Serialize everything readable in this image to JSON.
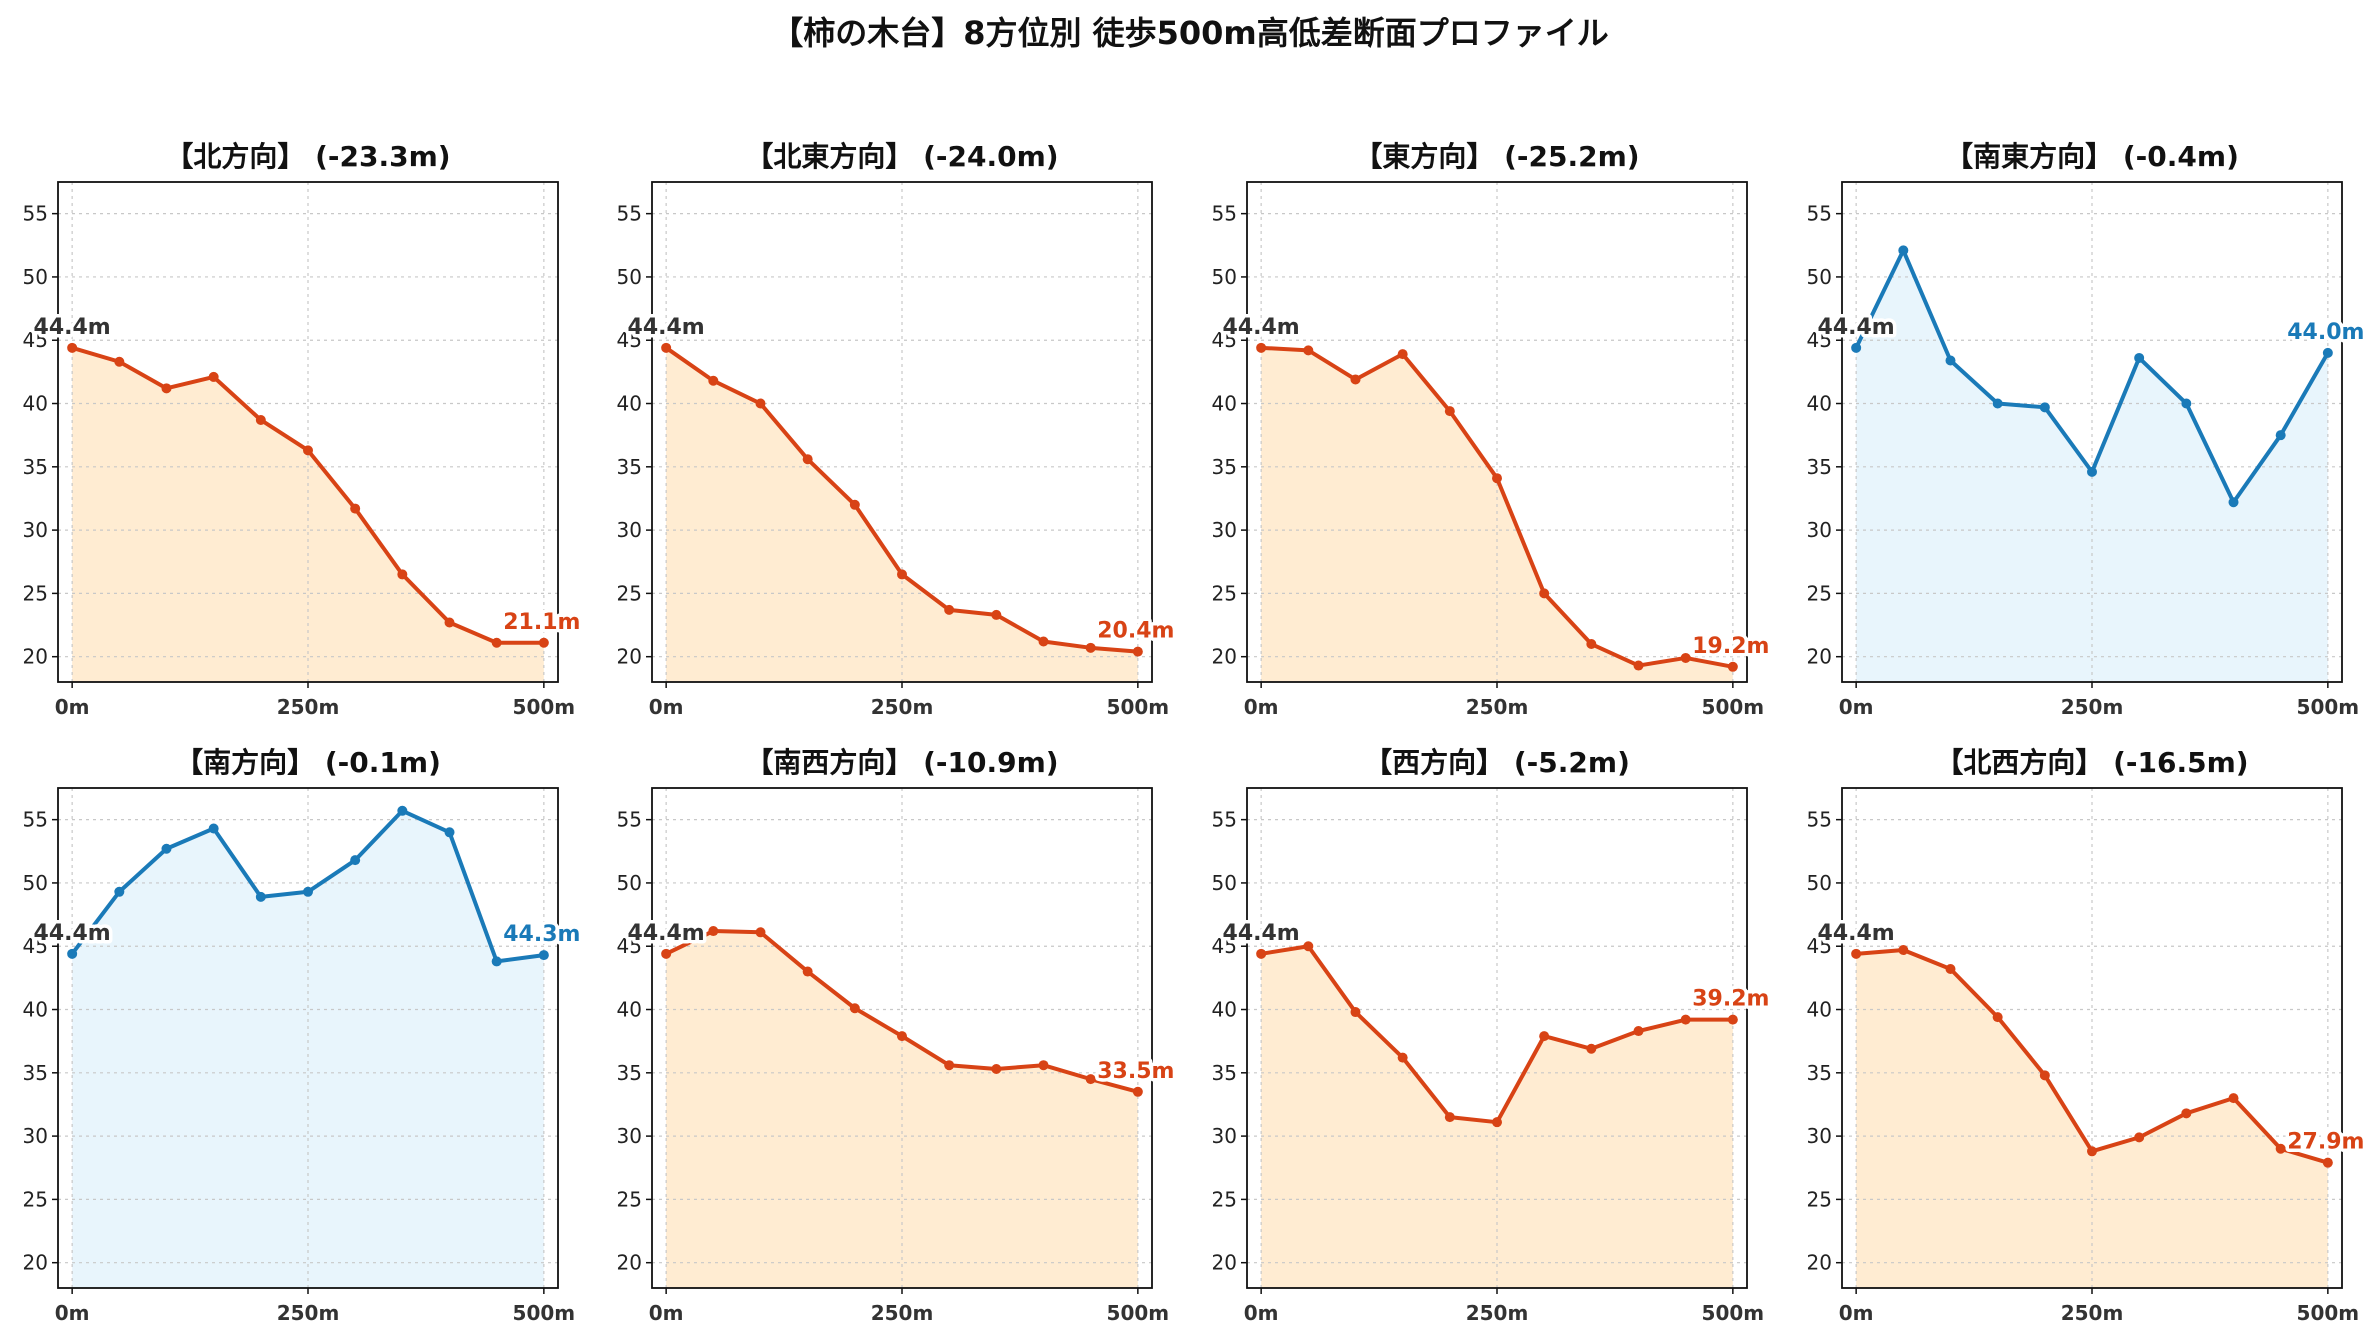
{
  "title": "【柿の木台】8方位別 徒歩500m高低差断面プロファイル",
  "colors": {
    "down_line": "#d84315",
    "down_fill": "#ffecd2",
    "up_line": "#1a7ab8",
    "up_fill": "#e8f5fc",
    "start_label": "#333333"
  },
  "chart_data": [
    {
      "type": "area",
      "title": "【北方向】 (-23.3m)",
      "trend": "down",
      "x": [
        0,
        50,
        100,
        150,
        200,
        250,
        300,
        350,
        400,
        450,
        500
      ],
      "y": [
        44.4,
        43.3,
        41.2,
        42.1,
        38.7,
        36.3,
        31.7,
        26.5,
        22.7,
        21.1,
        21.1
      ],
      "start_label": "44.4m",
      "end_label": "21.1m",
      "xticks": [
        "0m",
        "250m",
        "500m"
      ],
      "yticks": [
        20,
        25,
        30,
        35,
        40,
        45,
        50,
        55
      ],
      "ylim": [
        18,
        57.5
      ],
      "xlim": [
        -15,
        515
      ],
      "grid": true
    },
    {
      "type": "area",
      "title": "【北東方向】 (-24.0m)",
      "trend": "down",
      "x": [
        0,
        50,
        100,
        150,
        200,
        250,
        300,
        350,
        400,
        450,
        500
      ],
      "y": [
        44.4,
        41.8,
        40.0,
        35.6,
        32.0,
        26.5,
        23.7,
        23.3,
        21.2,
        20.7,
        20.4
      ],
      "start_label": "44.4m",
      "end_label": "20.4m",
      "xticks": [
        "0m",
        "250m",
        "500m"
      ],
      "yticks": [
        20,
        25,
        30,
        35,
        40,
        45,
        50,
        55
      ],
      "ylim": [
        18,
        57.5
      ],
      "xlim": [
        -15,
        515
      ],
      "grid": true
    },
    {
      "type": "area",
      "title": "【東方向】 (-25.2m)",
      "trend": "down",
      "x": [
        0,
        50,
        100,
        150,
        200,
        250,
        300,
        350,
        400,
        450,
        500
      ],
      "y": [
        44.4,
        44.2,
        41.9,
        43.9,
        39.4,
        34.1,
        25.0,
        21.0,
        19.3,
        19.9,
        19.2
      ],
      "start_label": "44.4m",
      "end_label": "19.2m",
      "xticks": [
        "0m",
        "250m",
        "500m"
      ],
      "yticks": [
        20,
        25,
        30,
        35,
        40,
        45,
        50,
        55
      ],
      "ylim": [
        18,
        57.5
      ],
      "xlim": [
        -15,
        515
      ],
      "grid": true
    },
    {
      "type": "area",
      "title": "【南東方向】 (-0.4m)",
      "trend": "up",
      "x": [
        0,
        50,
        100,
        150,
        200,
        250,
        300,
        350,
        400,
        450,
        500
      ],
      "y": [
        44.4,
        52.1,
        43.4,
        40.0,
        39.7,
        34.6,
        43.6,
        40.0,
        32.2,
        37.5,
        44.0
      ],
      "start_label": "44.4m",
      "end_label": "44.0m",
      "xticks": [
        "0m",
        "250m",
        "500m"
      ],
      "yticks": [
        20,
        25,
        30,
        35,
        40,
        45,
        50,
        55
      ],
      "ylim": [
        18,
        57.5
      ],
      "xlim": [
        -15,
        515
      ],
      "grid": true
    },
    {
      "type": "area",
      "title": "【南方向】 (-0.1m)",
      "trend": "up",
      "x": [
        0,
        50,
        100,
        150,
        200,
        250,
        300,
        350,
        400,
        450,
        500
      ],
      "y": [
        44.4,
        49.3,
        52.7,
        54.3,
        48.9,
        49.3,
        51.8,
        55.7,
        54.0,
        43.8,
        44.3
      ],
      "start_label": "44.4m",
      "end_label": "44.3m",
      "xticks": [
        "0m",
        "250m",
        "500m"
      ],
      "yticks": [
        20,
        25,
        30,
        35,
        40,
        45,
        50,
        55
      ],
      "ylim": [
        18,
        57.5
      ],
      "xlim": [
        -15,
        515
      ],
      "grid": true
    },
    {
      "type": "area",
      "title": "【南西方向】 (-10.9m)",
      "trend": "down",
      "x": [
        0,
        50,
        100,
        150,
        200,
        250,
        300,
        350,
        400,
        450,
        500
      ],
      "y": [
        44.4,
        46.2,
        46.1,
        43.0,
        40.1,
        37.9,
        35.6,
        35.3,
        35.6,
        34.5,
        33.5
      ],
      "start_label": "44.4m",
      "end_label": "33.5m",
      "xticks": [
        "0m",
        "250m",
        "500m"
      ],
      "yticks": [
        20,
        25,
        30,
        35,
        40,
        45,
        50,
        55
      ],
      "ylim": [
        18,
        57.5
      ],
      "xlim": [
        -15,
        515
      ],
      "grid": true
    },
    {
      "type": "area",
      "title": "【西方向】 (-5.2m)",
      "trend": "down",
      "x": [
        0,
        50,
        100,
        150,
        200,
        250,
        300,
        350,
        400,
        450,
        500
      ],
      "y": [
        44.4,
        45.0,
        39.8,
        36.2,
        31.5,
        31.1,
        37.9,
        36.9,
        38.3,
        39.2,
        39.2
      ],
      "start_label": "44.4m",
      "end_label": "39.2m",
      "xticks": [
        "0m",
        "250m",
        "500m"
      ],
      "yticks": [
        20,
        25,
        30,
        35,
        40,
        45,
        50,
        55
      ],
      "ylim": [
        18,
        57.5
      ],
      "xlim": [
        -15,
        515
      ],
      "grid": true
    },
    {
      "type": "area",
      "title": "【北西方向】 (-16.5m)",
      "trend": "down",
      "x": [
        0,
        50,
        100,
        150,
        200,
        250,
        300,
        350,
        400,
        450,
        500
      ],
      "y": [
        44.4,
        44.7,
        43.2,
        39.4,
        34.8,
        28.8,
        29.9,
        31.8,
        33.0,
        29.0,
        27.9
      ],
      "start_label": "44.4m",
      "end_label": "27.9m",
      "xticks": [
        "0m",
        "250m",
        "500m"
      ],
      "yticks": [
        20,
        25,
        30,
        35,
        40,
        45,
        50,
        55
      ],
      "ylim": [
        18,
        57.5
      ],
      "xlim": [
        -15,
        515
      ],
      "grid": true
    }
  ]
}
